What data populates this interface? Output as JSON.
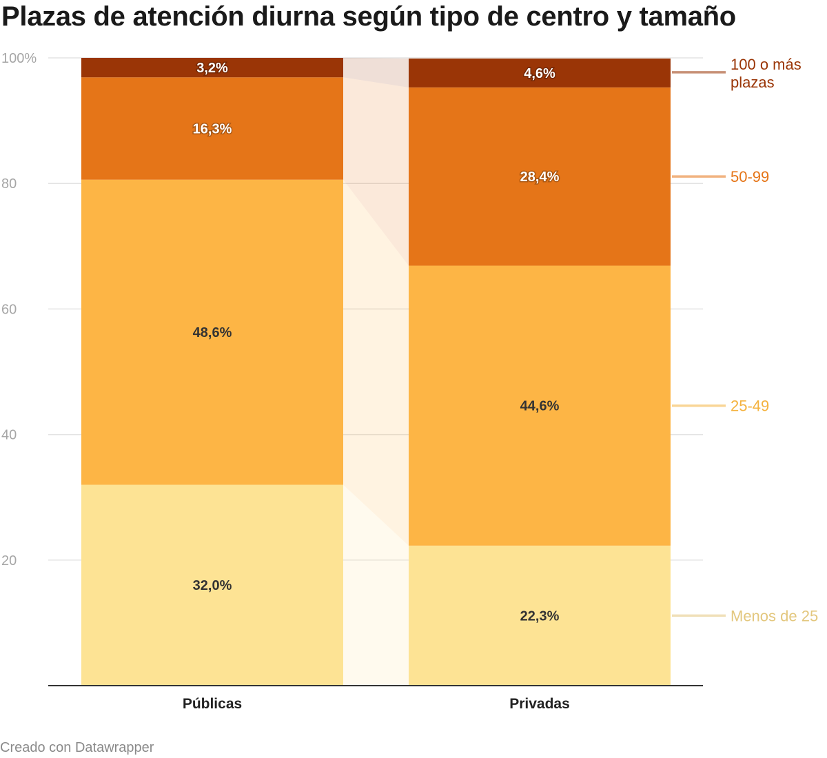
{
  "title": "Plazas de atención diurna según tipo de centro y tamaño",
  "credit": "Creado con Datawrapper",
  "chart_data": {
    "type": "bar",
    "stacked": true,
    "categories": [
      "Públicas",
      "Privadas"
    ],
    "series": [
      {
        "name": "Menos de 25",
        "values": [
          32.0,
          22.3
        ],
        "labels": [
          "32,0%",
          "22,3%"
        ],
        "color": "#fde394",
        "legend_color": "#e3c77e",
        "label_color": "#333333"
      },
      {
        "name": "25-49",
        "values": [
          48.6,
          44.6
        ],
        "labels": [
          "48,6%",
          "44,6%"
        ],
        "color": "#fdb545",
        "legend_color": "#f4b23e",
        "label_color": "#333333"
      },
      {
        "name": "50-99",
        "values": [
          16.3,
          28.4
        ],
        "labels": [
          "16,3%",
          "28,4%"
        ],
        "color": "#e57518",
        "legend_color": "#e57518",
        "label_color": "#ffffff"
      },
      {
        "name": "100 o más plazas",
        "values": [
          3.2,
          4.6
        ],
        "labels": [
          "3,2%",
          "4,6%"
        ],
        "color": "#9a3506",
        "legend_color": "#9a3506",
        "label_color": "#ffffff"
      }
    ],
    "y_ticks": [
      "20",
      "40",
      "60",
      "80",
      "100%"
    ],
    "y_tick_values": [
      20,
      40,
      60,
      80,
      100
    ],
    "ylim": [
      0,
      100
    ],
    "grid": true,
    "legend_position": "right"
  }
}
